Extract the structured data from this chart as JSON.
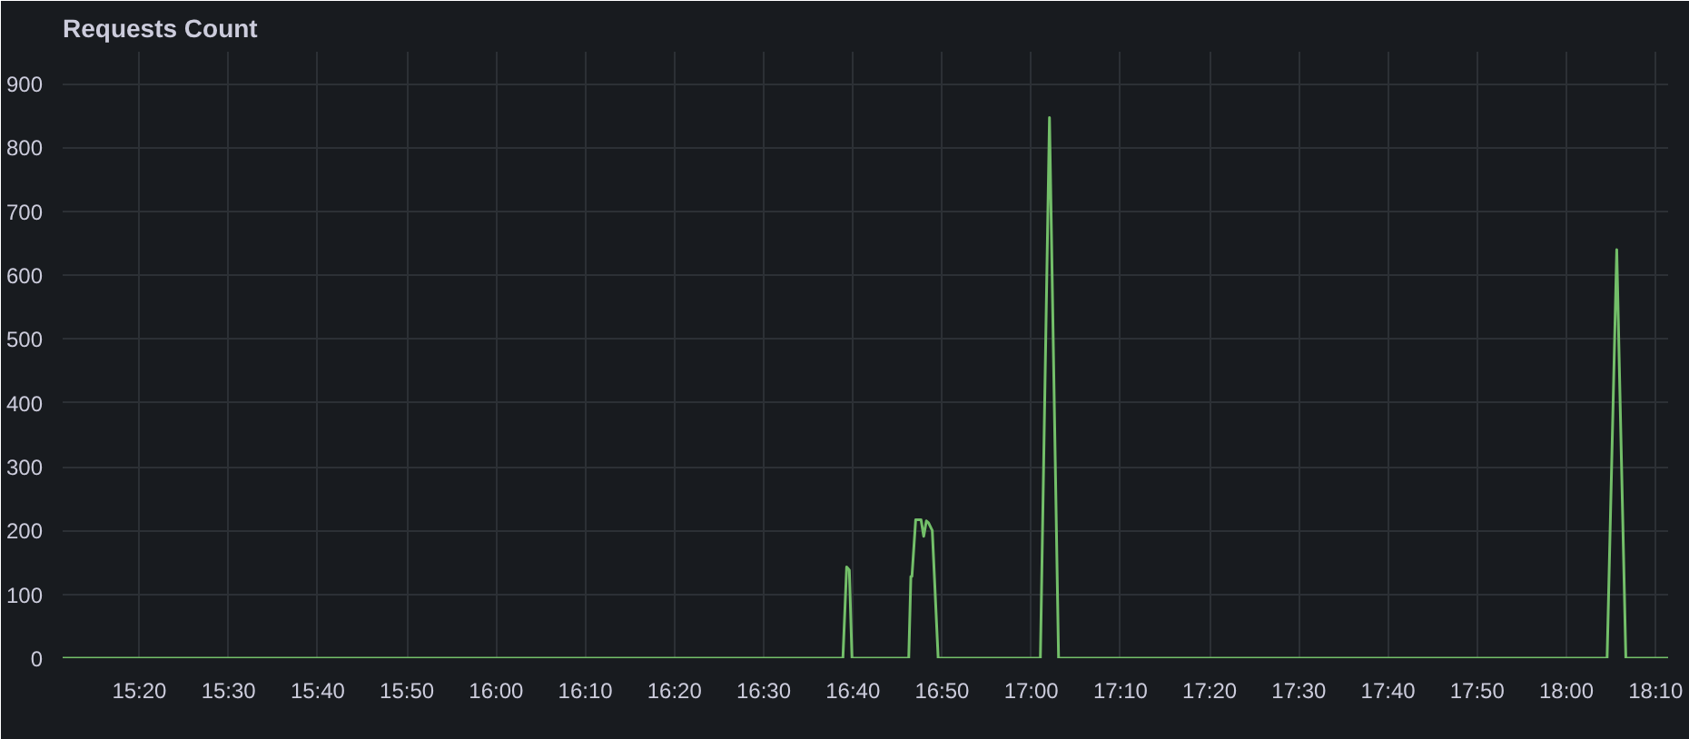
{
  "chart_data": {
    "type": "line",
    "title": "Requests Count",
    "x": [
      15.19,
      16.648,
      16.655,
      16.66,
      16.665,
      16.668,
      16.771,
      16.775,
      16.777,
      16.784,
      16.79,
      16.794,
      16.799,
      16.804,
      16.808,
      16.815,
      16.826,
      17.017,
      17.034,
      17.051,
      18.076,
      18.094,
      18.111,
      18.19
    ],
    "series": [
      {
        "color": "#73bf69",
        "values": [
          0,
          0,
          143,
          138,
          0,
          0,
          0,
          128,
          128,
          217,
          217,
          217,
          191,
          215,
          212,
          200,
          0,
          0,
          847,
          0,
          0,
          640,
          0,
          0
        ]
      }
    ],
    "xlim": [
      15.19,
      18.19
    ],
    "xticks": [
      {
        "value": 15.3333,
        "label": "15:20"
      },
      {
        "value": 15.5,
        "label": "15:30"
      },
      {
        "value": 15.6667,
        "label": "15:40"
      },
      {
        "value": 15.8333,
        "label": "15:50"
      },
      {
        "value": 16,
        "label": "16:00"
      },
      {
        "value": 16.1667,
        "label": "16:10"
      },
      {
        "value": 16.3333,
        "label": "16:20"
      },
      {
        "value": 16.5,
        "label": "16:30"
      },
      {
        "value": 16.6667,
        "label": "16:40"
      },
      {
        "value": 16.8333,
        "label": "16:50"
      },
      {
        "value": 17,
        "label": "17:00"
      },
      {
        "value": 17.1667,
        "label": "17:10"
      },
      {
        "value": 17.3333,
        "label": "17:20"
      },
      {
        "value": 17.5,
        "label": "17:30"
      },
      {
        "value": 17.6667,
        "label": "17:40"
      },
      {
        "value": 17.8333,
        "label": "17:50"
      },
      {
        "value": 18,
        "label": "18:00"
      },
      {
        "value": 18.1667,
        "label": "18:10"
      }
    ],
    "ylim": [
      0,
      950
    ],
    "yticks": [
      0,
      100,
      200,
      300,
      400,
      500,
      600,
      700,
      800,
      900
    ],
    "grid": true,
    "marker": "none",
    "line_style": "solid"
  }
}
